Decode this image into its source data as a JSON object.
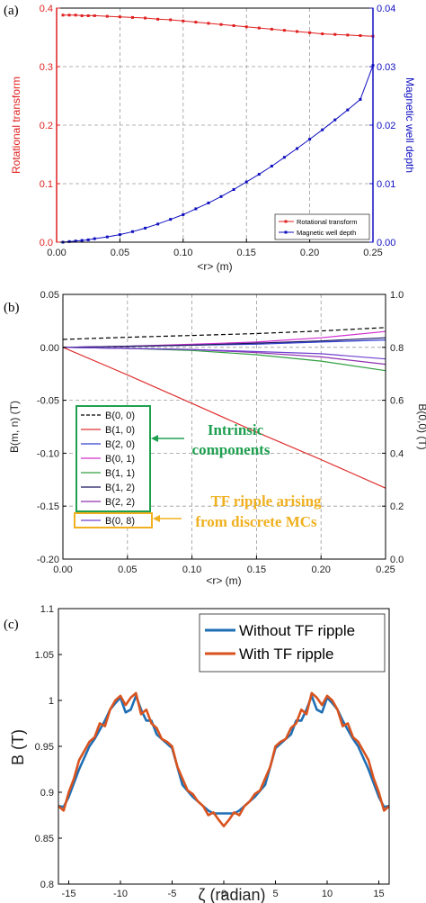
{
  "chart_data": [
    {
      "panel": "(a)",
      "type": "line",
      "xlabel": "<r> (m)",
      "ylabel_left": "Rotational transform",
      "ylabel_right": "Magnetic well depth",
      "xlim": [
        0,
        0.25
      ],
      "ylim_left": [
        0,
        0.4
      ],
      "ylim_right": [
        0,
        0.04
      ],
      "xticks": [
        "0.00",
        "0.05",
        "0.10",
        "0.15",
        "0.20",
        "0.25"
      ],
      "yticks_left": [
        "0.0",
        "0.1",
        "0.2",
        "0.3",
        "0.4"
      ],
      "yticks_right": [
        "0.00",
        "0.01",
        "0.02",
        "0.03",
        "0.04"
      ],
      "grid": true,
      "legend_position": "bottom-right",
      "colors": {
        "left_axis": "#e02020",
        "right_axis": "#1010c0"
      },
      "series": [
        {
          "name": "Rotational transform",
          "axis": "left",
          "color": "#e02020",
          "x": [
            0.005,
            0.01,
            0.015,
            0.02,
            0.025,
            0.03,
            0.04,
            0.05,
            0.06,
            0.07,
            0.08,
            0.09,
            0.1,
            0.11,
            0.12,
            0.13,
            0.14,
            0.15,
            0.16,
            0.17,
            0.18,
            0.19,
            0.2,
            0.21,
            0.22,
            0.23,
            0.24,
            0.25
          ],
          "values": [
            0.388,
            0.388,
            0.388,
            0.387,
            0.387,
            0.387,
            0.386,
            0.385,
            0.384,
            0.383,
            0.381,
            0.38,
            0.378,
            0.376,
            0.374,
            0.372,
            0.37,
            0.368,
            0.366,
            0.364,
            0.362,
            0.36,
            0.358,
            0.356,
            0.355,
            0.354,
            0.353,
            0.352
          ]
        },
        {
          "name": "Magnetic well depth",
          "axis": "right",
          "color": "#1010c0",
          "x": [
            0.005,
            0.01,
            0.015,
            0.02,
            0.025,
            0.03,
            0.04,
            0.05,
            0.06,
            0.07,
            0.08,
            0.09,
            0.1,
            0.11,
            0.12,
            0.13,
            0.14,
            0.15,
            0.16,
            0.17,
            0.18,
            0.19,
            0.2,
            0.21,
            0.22,
            0.23,
            0.24,
            0.25
          ],
          "values": [
            0.0,
            0.0001,
            0.0002,
            0.0003,
            0.0004,
            0.0006,
            0.0009,
            0.0013,
            0.0018,
            0.0024,
            0.0031,
            0.0039,
            0.0047,
            0.0057,
            0.0067,
            0.0078,
            0.009,
            0.0103,
            0.0116,
            0.013,
            0.0145,
            0.016,
            0.0176,
            0.0192,
            0.0209,
            0.0226,
            0.0244,
            0.0302
          ]
        }
      ]
    },
    {
      "panel": "(b)",
      "type": "line",
      "xlabel": "<r> (m)",
      "ylabel_left": "B(m, n) (T)",
      "ylabel_right": "B(0,0) (T)",
      "xlim": [
        0,
        0.25
      ],
      "ylim_left": [
        -0.2,
        0.05
      ],
      "ylim_right": [
        0.0,
        1.0
      ],
      "xticks": [
        "0.00",
        "0.05",
        "0.10",
        "0.15",
        "0.20",
        "0.25"
      ],
      "yticks_left": [
        "0.05",
        "0.00",
        "-0.05",
        "-0.10",
        "-0.15",
        "-0.20"
      ],
      "yticks_right": [
        "1.0",
        "0.8",
        "0.6",
        "0.4",
        "0.2",
        "0.0"
      ],
      "grid": true,
      "legend_position": "bottom-left",
      "annotations": [
        {
          "text_lines": [
            "Intrinsic",
            "components"
          ],
          "color": "#1fa050"
        },
        {
          "text_lines": [
            "TF ripple arising",
            "from discrete MCs"
          ],
          "color": "#f0b020"
        }
      ],
      "series": [
        {
          "name": "B(0, 0)",
          "axis": "right",
          "color": "#000000",
          "dashed": true,
          "x": [
            0,
            0.05,
            0.1,
            0.15,
            0.2,
            0.25
          ],
          "values": [
            0.83,
            0.838,
            0.845,
            0.852,
            0.862,
            0.875
          ]
        },
        {
          "name": "B(1, 0)",
          "axis": "left",
          "color": "#e03030",
          "x": [
            0,
            0.05,
            0.1,
            0.15,
            0.2,
            0.25
          ],
          "values": [
            0.0,
            -0.026,
            -0.053,
            -0.08,
            -0.106,
            -0.133
          ]
        },
        {
          "name": "B(2, 0)",
          "axis": "left",
          "color": "#3040d0",
          "x": [
            0,
            0.05,
            0.1,
            0.15,
            0.2,
            0.25
          ],
          "values": [
            0.0,
            0.001,
            0.002,
            0.003,
            0.005,
            0.007
          ]
        },
        {
          "name": "B(0, 1)",
          "axis": "left",
          "color": "#d030d0",
          "x": [
            0,
            0.05,
            0.1,
            0.15,
            0.2,
            0.25
          ],
          "values": [
            0.0,
            0.001,
            0.003,
            0.005,
            0.009,
            0.015
          ]
        },
        {
          "name": "B(1, 1)",
          "axis": "left",
          "color": "#30a040",
          "x": [
            0,
            0.05,
            0.1,
            0.15,
            0.2,
            0.25
          ],
          "values": [
            0.0,
            -0.001,
            -0.003,
            -0.007,
            -0.013,
            -0.022
          ]
        },
        {
          "name": "B(1, 2)",
          "axis": "left",
          "color": "#1a1660",
          "x": [
            0,
            0.05,
            0.1,
            0.15,
            0.2,
            0.25
          ],
          "values": [
            0.0,
            0.001,
            0.002,
            0.004,
            0.006,
            0.009
          ]
        },
        {
          "name": "B(2, 2)",
          "axis": "left",
          "color": "#9030b0",
          "x": [
            0,
            0.05,
            0.1,
            0.15,
            0.2,
            0.25
          ],
          "values": [
            0.0,
            -0.001,
            -0.002,
            -0.005,
            -0.009,
            -0.016
          ]
        },
        {
          "name": "B(0, 8)",
          "axis": "left",
          "color": "#7040d0",
          "x": [
            0,
            0.05,
            0.1,
            0.15,
            0.2,
            0.25
          ],
          "values": [
            0.0,
            -0.001,
            -0.002,
            -0.004,
            -0.006,
            -0.011
          ]
        }
      ]
    },
    {
      "panel": "(c)",
      "type": "line",
      "xlabel": "ζ (radian)",
      "ylabel": "B (T)",
      "xlim": [
        -16,
        16
      ],
      "ylim": [
        0.8,
        1.1
      ],
      "xticks": [
        "-15",
        "-10",
        "-5",
        "0",
        "5",
        "10",
        "15"
      ],
      "yticks": [
        "0.8",
        "0.85",
        "0.9",
        "0.95",
        "1",
        "1.05",
        "1.1"
      ],
      "grid": false,
      "legend_position": "top-right",
      "series": [
        {
          "name": "Without TF ripple",
          "color": "#1f6fb5",
          "x": [
            -16,
            -15.5,
            -15,
            -14,
            -13,
            -12.5,
            -12,
            -11.5,
            -11,
            -10.5,
            -10,
            -9.5,
            -9,
            -8.5,
            -8,
            -7.5,
            -7,
            -6.5,
            -6,
            -5,
            -4,
            -3,
            -2,
            -1.5,
            -1,
            -0.5,
            0,
            0.5,
            1,
            1.5,
            2,
            3,
            4,
            5,
            6,
            6.5,
            7,
            7.5,
            8,
            8.5,
            9,
            9.5,
            10,
            10.5,
            11,
            11.5,
            12,
            12.5,
            13,
            14,
            15,
            15.5,
            16
          ],
          "values": [
            0.885,
            0.884,
            0.895,
            0.925,
            0.95,
            0.958,
            0.968,
            0.978,
            0.99,
            0.997,
            1.003,
            0.987,
            0.99,
            1.005,
            0.99,
            0.978,
            0.978,
            0.963,
            0.958,
            0.948,
            0.908,
            0.895,
            0.885,
            0.88,
            0.877,
            0.877,
            0.877,
            0.877,
            0.877,
            0.88,
            0.885,
            0.895,
            0.908,
            0.948,
            0.958,
            0.963,
            0.978,
            0.978,
            0.99,
            1.005,
            0.99,
            0.987,
            1.003,
            0.997,
            0.99,
            0.978,
            0.968,
            0.958,
            0.95,
            0.925,
            0.895,
            0.884,
            0.885
          ]
        },
        {
          "name": "With TF ripple",
          "color": "#d9531e",
          "x": [
            -16,
            -15.5,
            -15,
            -14.5,
            -14,
            -13.5,
            -13,
            -12.5,
            -12,
            -11.5,
            -11,
            -10.5,
            -10,
            -9.5,
            -9,
            -8.5,
            -8,
            -7.5,
            -7,
            -6.5,
            -6,
            -5.5,
            -5,
            -4.5,
            -4,
            -3.5,
            -3,
            -2.5,
            -2,
            -1.5,
            -1,
            -0.5,
            0,
            0.5,
            1,
            1.5,
            2,
            2.5,
            3,
            3.5,
            4,
            4.5,
            5,
            5.5,
            6,
            6.5,
            7,
            7.5,
            8,
            8.5,
            9,
            9.5,
            10,
            10.5,
            11,
            11.5,
            12,
            12.5,
            13,
            13.5,
            14,
            14.5,
            15,
            15.5,
            16
          ],
          "values": [
            0.885,
            0.88,
            0.9,
            0.915,
            0.935,
            0.945,
            0.955,
            0.96,
            0.975,
            0.972,
            0.99,
            1.0,
            1.005,
            0.995,
            1.003,
            1.008,
            0.985,
            0.99,
            0.975,
            0.97,
            0.958,
            0.955,
            0.95,
            0.928,
            0.915,
            0.902,
            0.898,
            0.89,
            0.885,
            0.875,
            0.878,
            0.87,
            0.863,
            0.87,
            0.878,
            0.875,
            0.885,
            0.89,
            0.898,
            0.902,
            0.915,
            0.928,
            0.95,
            0.955,
            0.958,
            0.97,
            0.975,
            0.99,
            0.985,
            1.008,
            1.003,
            0.995,
            1.005,
            1.0,
            0.99,
            0.972,
            0.975,
            0.96,
            0.955,
            0.945,
            0.935,
            0.915,
            0.9,
            0.88,
            0.885
          ]
        }
      ]
    }
  ]
}
